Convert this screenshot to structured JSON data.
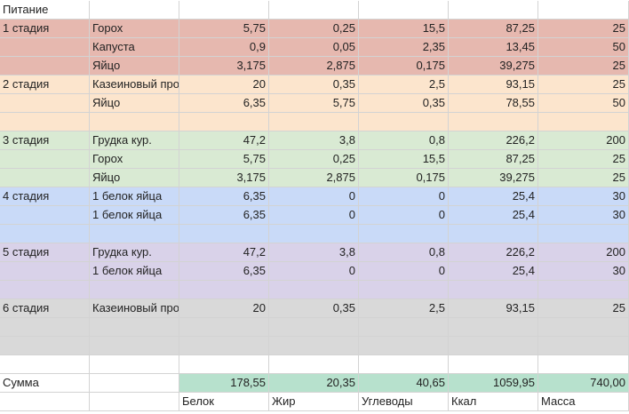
{
  "title": "Питание",
  "stages": [
    {
      "label": "1 стадия",
      "color": "#e6b8af",
      "rows": [
        {
          "food": "Горох",
          "protein": "5,75",
          "fat": "0,25",
          "carbs": "15,5",
          "kcal": "87,25",
          "mass": "25"
        },
        {
          "food": "Капуста",
          "protein": "0,9",
          "fat": "0,05",
          "carbs": "2,35",
          "kcal": "13,45",
          "mass": "50"
        },
        {
          "food": "Яйцо",
          "protein": "3,175",
          "fat": "2,875",
          "carbs": "0,175",
          "kcal": "39,275",
          "mass": "25"
        }
      ]
    },
    {
      "label": "2 стадия",
      "color": "#fce5cd",
      "rows": [
        {
          "food": "Казеиновый про",
          "protein": "20",
          "fat": "0,35",
          "carbs": "2,5",
          "kcal": "93,15",
          "mass": "25"
        },
        {
          "food": "Яйцо",
          "protein": "6,35",
          "fat": "5,75",
          "carbs": "0,35",
          "kcal": "78,55",
          "mass": "50"
        },
        {
          "food": "",
          "protein": "",
          "fat": "",
          "carbs": "",
          "kcal": "",
          "mass": ""
        }
      ]
    },
    {
      "label": "3 стадия",
      "color": "#d9ead3",
      "rows": [
        {
          "food": "Грудка кур.",
          "protein": "47,2",
          "fat": "3,8",
          "carbs": "0,8",
          "kcal": "226,2",
          "mass": "200"
        },
        {
          "food": "Горох",
          "protein": "5,75",
          "fat": "0,25",
          "carbs": "15,5",
          "kcal": "87,25",
          "mass": "25"
        },
        {
          "food": "Яйцо",
          "protein": "3,175",
          "fat": "2,875",
          "carbs": "0,175",
          "kcal": "39,275",
          "mass": "25"
        }
      ]
    },
    {
      "label": "4 стадия",
      "color": "#c9daf8",
      "rows": [
        {
          "food": "1 белок яйца",
          "protein": "6,35",
          "fat": "0",
          "carbs": "0",
          "kcal": "25,4",
          "mass": "30"
        },
        {
          "food": "1 белок яйца",
          "protein": "6,35",
          "fat": "0",
          "carbs": "0",
          "kcal": "25,4",
          "mass": "30"
        },
        {
          "food": "",
          "protein": "",
          "fat": "",
          "carbs": "",
          "kcal": "",
          "mass": ""
        }
      ]
    },
    {
      "label": "5 стадия",
      "color": "#d9d2e9",
      "rows": [
        {
          "food": "Грудка кур.",
          "protein": "47,2",
          "fat": "3,8",
          "carbs": "0,8",
          "kcal": "226,2",
          "mass": "200"
        },
        {
          "food": "1 белок яйца",
          "protein": "6,35",
          "fat": "0",
          "carbs": "0",
          "kcal": "25,4",
          "mass": "30"
        },
        {
          "food": "",
          "protein": "",
          "fat": "",
          "carbs": "",
          "kcal": "",
          "mass": ""
        }
      ]
    },
    {
      "label": "6 стадия",
      "color": "#d9d9d9",
      "rows": [
        {
          "food": "Казеиновый про",
          "protein": "20",
          "fat": "0,35",
          "carbs": "2,5",
          "kcal": "93,15",
          "mass": "25"
        },
        {
          "food": "",
          "protein": "",
          "fat": "",
          "carbs": "",
          "kcal": "",
          "mass": ""
        },
        {
          "food": "",
          "protein": "",
          "fat": "",
          "carbs": "",
          "kcal": "",
          "mass": ""
        }
      ]
    }
  ],
  "summary": {
    "label": "Сумма",
    "protein": "178,55",
    "fat": "20,35",
    "carbs": "40,65",
    "kcal": "1059,95",
    "mass": "740,00",
    "color": "#b7e1cd"
  },
  "columns": {
    "protein": "Белок",
    "fat": "Жир",
    "carbs": "Углеводы",
    "kcal": "Ккал",
    "mass": "Масса"
  }
}
